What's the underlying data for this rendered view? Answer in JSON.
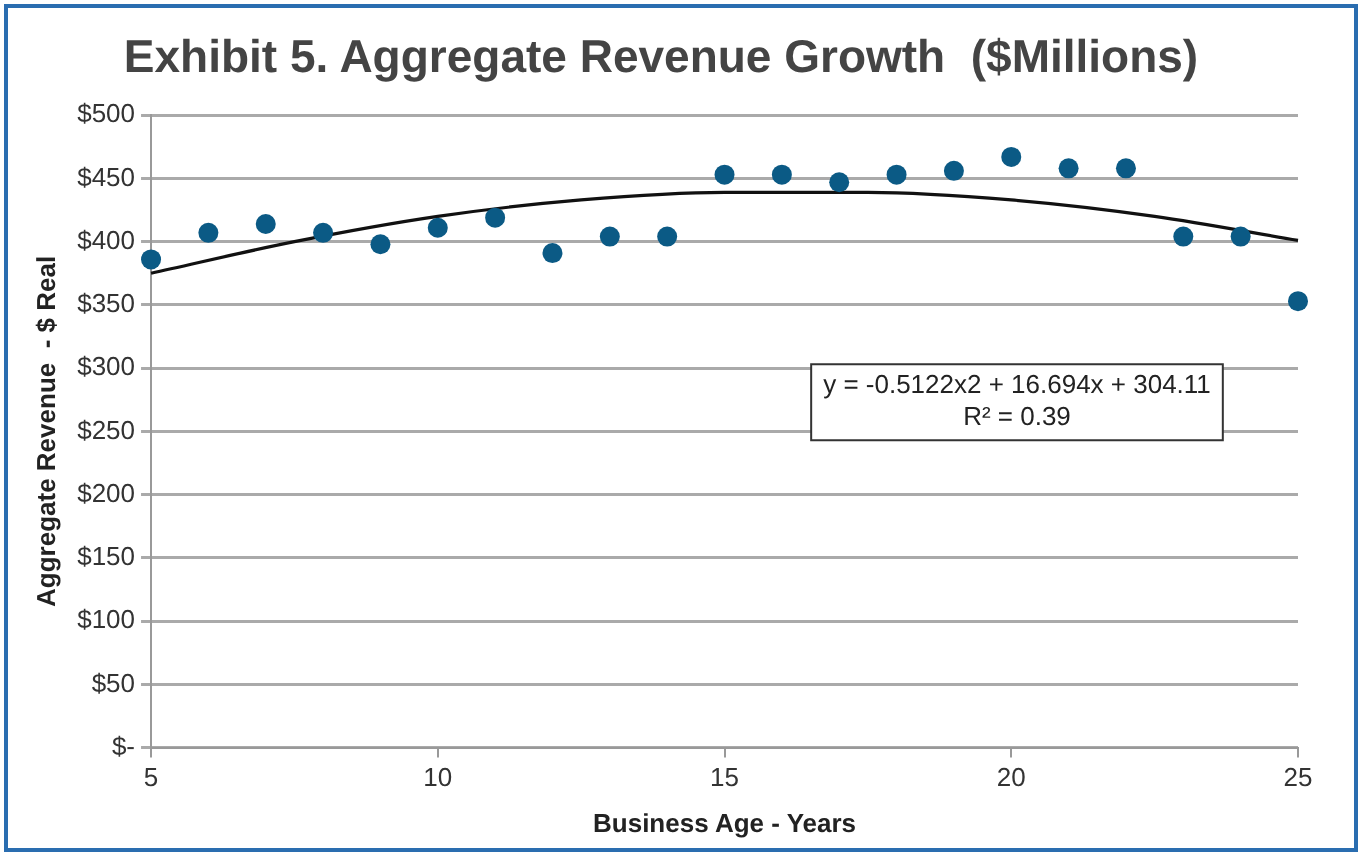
{
  "chart_data": {
    "type": "scatter",
    "title": "Exhibit 5. Aggregate Revenue Growth  ($Millions)",
    "xlabel": "Business Age - Years",
    "ylabel": "Aggregate Revenue  - $ Real",
    "x": [
      5,
      6,
      7,
      8,
      9,
      10,
      11,
      12,
      13,
      14,
      15,
      16,
      17,
      18,
      19,
      20,
      21,
      22,
      23,
      24,
      25
    ],
    "series": [
      {
        "color": "#0b5a85",
        "values": [
          386,
          407,
          414,
          407,
          398,
          411,
          419,
          391,
          404,
          404,
          453,
          453,
          447,
          453,
          456,
          467,
          458,
          458,
          404,
          404,
          353
        ]
      },
      {
        "type": "line",
        "color": "#111111",
        "x": [
          5,
          7.5,
          10,
          12.5,
          15,
          17.5,
          20,
          22.5,
          25
        ],
        "values": [
          375,
          400,
          420,
          433,
          439,
          439,
          433,
          420,
          401
        ],
        "marker": "none"
      }
    ],
    "xlim": [
      5,
      25
    ],
    "xticks": [
      5,
      10,
      15,
      20,
      25
    ],
    "ylim": [
      0,
      500
    ],
    "yticks": [
      {
        "value": 0,
        "label": "$-"
      },
      {
        "value": 50,
        "label": "$50"
      },
      {
        "value": 100,
        "label": "$100"
      },
      {
        "value": 150,
        "label": "$150"
      },
      {
        "value": 200,
        "label": "$200"
      },
      {
        "value": 250,
        "label": "$250"
      },
      {
        "value": 300,
        "label": "$300"
      },
      {
        "value": 350,
        "label": "$350"
      },
      {
        "value": 400,
        "label": "$400"
      },
      {
        "value": 450,
        "label": "$450"
      },
      {
        "value": 500,
        "label": "$500"
      }
    ],
    "grid": "y",
    "legend": false,
    "marker": "circle",
    "annotations": [
      "y = -0.5122x2 + 16.694x + 304.11",
      "R² = 0.39"
    ]
  }
}
